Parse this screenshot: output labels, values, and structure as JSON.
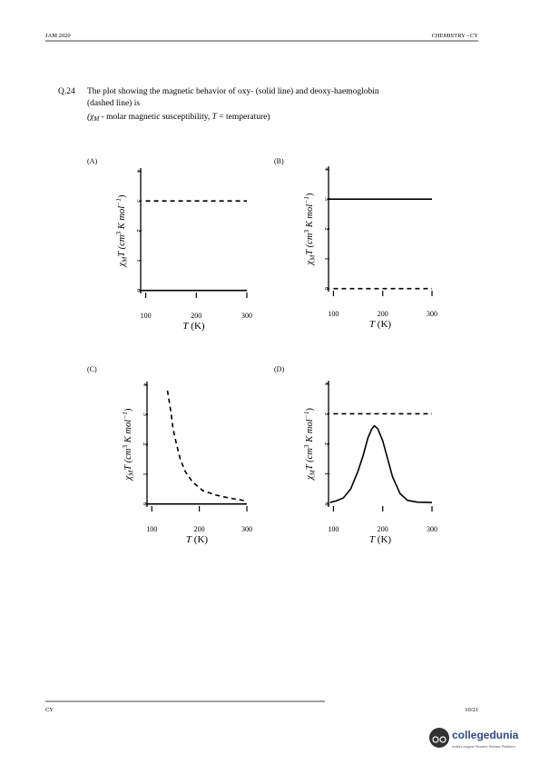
{
  "header": {
    "left": "JAM 2020",
    "right": "CHEMISTRY - CY"
  },
  "question": {
    "number": "Q.24",
    "text_line1": "The plot showing the magnetic behavior of oxy- (solid line) and deoxy-haemoglobin",
    "text_line2": "(dashed line) is",
    "note_parts": [
      "(χ",
      "M",
      " - molar magnetic susceptibility, ",
      "T",
      " = temperature)"
    ]
  },
  "plots": [
    {
      "label": "(A)",
      "y_label_parts": [
        "χ",
        "M",
        "T (cm",
        "3",
        " K mol",
        "−1",
        ")"
      ],
      "x_label_parts": [
        "T",
        " (K)"
      ],
      "xlim": [
        90,
        300
      ],
      "xticks": [
        100,
        200,
        300
      ],
      "ylim": [
        -0.1,
        4.1
      ],
      "yticks": [
        0,
        1,
        2,
        3,
        4
      ],
      "solid": {
        "x": [
          90,
          300
        ],
        "values": [
          0,
          0
        ]
      },
      "dashed": {
        "x": [
          100,
          300
        ],
        "values": [
          3,
          3
        ]
      }
    },
    {
      "label": "(B)",
      "y_label_parts": [
        "χ",
        "M",
        "T (cm",
        "3",
        " K mol",
        "−1",
        ")"
      ],
      "x_label_parts": [
        "T",
        " (K)"
      ],
      "xlim": [
        90,
        300
      ],
      "xticks": [
        100,
        200,
        300
      ],
      "ylim": [
        -0.1,
        4.1
      ],
      "yticks": [
        0,
        1,
        2,
        3,
        4
      ],
      "solid": {
        "x": [
          90,
          300
        ],
        "values": [
          3,
          3
        ]
      },
      "dashed": {
        "x": [
          100,
          300
        ],
        "values": [
          0,
          0
        ]
      }
    },
    {
      "label": "(C)",
      "y_label_parts": [
        "χ",
        "M",
        "T (cm",
        "3",
        " K mol",
        "−1",
        ")"
      ],
      "x_label_parts": [
        "T",
        " (K)"
      ],
      "xlim": [
        90,
        300
      ],
      "xticks": [
        100,
        200,
        300
      ],
      "ylim": [
        -0.1,
        4.1
      ],
      "yticks": [
        0,
        1,
        2,
        3,
        4
      ],
      "solid": {
        "x": [
          90,
          300
        ],
        "values": [
          0,
          0
        ]
      },
      "dashed": {
        "x": [
          133,
          140,
          145,
          152,
          160,
          170,
          185,
          207,
          235,
          263,
          300
        ],
        "values": [
          3.8,
          3.1,
          2.5,
          2.0,
          1.5,
          1.1,
          0.75,
          0.45,
          0.3,
          0.2,
          0.1
        ]
      }
    },
    {
      "label": "(D)",
      "y_label_parts": [
        "χ",
        "M",
        "T (cm",
        "3",
        " K mol",
        "−1",
        ")"
      ],
      "x_label_parts": [
        "T",
        " (K)"
      ],
      "xlim": [
        90,
        300
      ],
      "xticks": [
        100,
        200,
        300
      ],
      "ylim": [
        -0.1,
        4.1
      ],
      "yticks": [
        0,
        1,
        2,
        3,
        4
      ],
      "solid": {
        "x": [
          93,
          105,
          120,
          135,
          150,
          160,
          170,
          178,
          183,
          190,
          200,
          210,
          220,
          235,
          250,
          270,
          300
        ],
        "values": [
          0.05,
          0.1,
          0.2,
          0.5,
          1.1,
          1.6,
          2.2,
          2.5,
          2.6,
          2.5,
          2.1,
          1.5,
          0.9,
          0.35,
          0.12,
          0.06,
          0.05
        ]
      },
      "dashed": {
        "x": [
          100,
          300
        ],
        "values": [
          3,
          3
        ]
      }
    }
  ],
  "footer": {
    "left": "CY",
    "right": "10/21"
  },
  "watermark": {
    "brand": "collegedunia",
    "tagline": "India's largest Student Review Platform"
  }
}
